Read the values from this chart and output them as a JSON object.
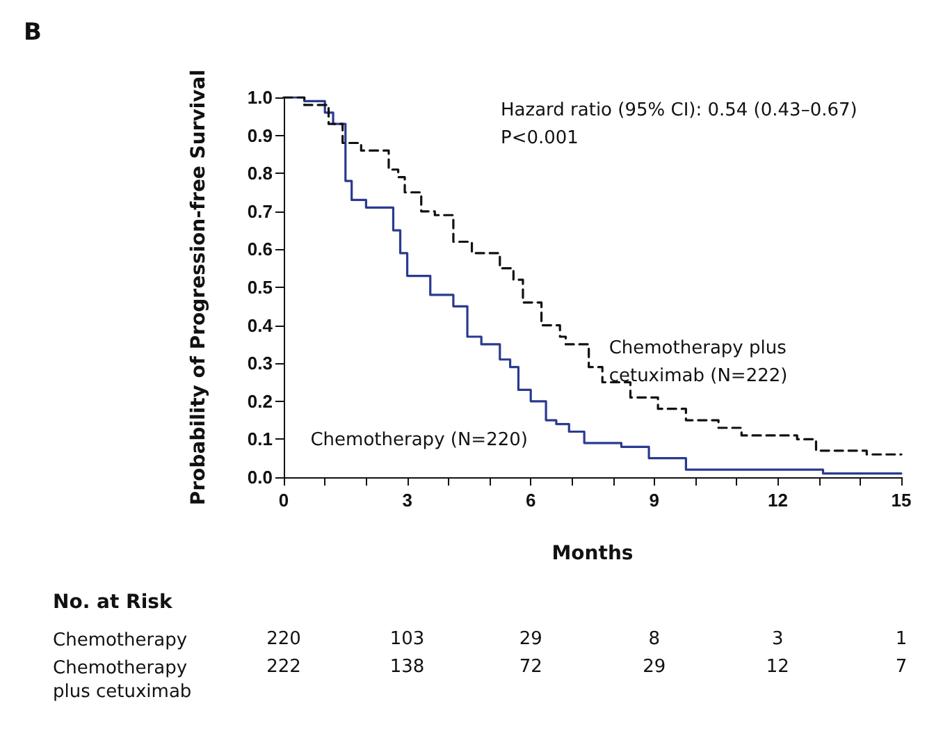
{
  "chart_data": {
    "type": "step",
    "title": "B",
    "xlabel": "Months",
    "ylabel": "Probability of Progression-free Survival",
    "xlim": [
      0,
      15
    ],
    "xticks": [
      0,
      {
        "value": 1,
        "label": null
      },
      {
        "value": 2,
        "label": null
      },
      3,
      {
        "value": 4,
        "label": null
      },
      {
        "value": 5,
        "label": null
      },
      6,
      {
        "value": 7,
        "label": null
      },
      {
        "value": 8,
        "label": null
      },
      9,
      {
        "value": 10,
        "label": null
      },
      {
        "value": 11,
        "label": null
      },
      12,
      {
        "value": 13,
        "label": null
      },
      {
        "value": 14,
        "label": null
      },
      15
    ],
    "ylim": [
      0,
      1
    ],
    "yticks": [
      {
        "value": 0,
        "label": "0.0"
      },
      0.1,
      0.2,
      0.3,
      0.4,
      0.5,
      0.6,
      0.7,
      0.8,
      0.9,
      {
        "value": 1,
        "label": "1.0"
      }
    ],
    "grid": false,
    "legend": false,
    "marker": "none",
    "series": [
      {
        "name": "Chemotherapy (N=220)",
        "color": "#2b3a8f",
        "line_style": "solid",
        "x": [
          0,
          0.5,
          1.0,
          1.2,
          1.5,
          1.65,
          2.0,
          2.66,
          2.83,
          3.0,
          3.56,
          4.12,
          4.46,
          4.8,
          5.25,
          5.5,
          5.7,
          6.0,
          6.37,
          6.62,
          6.93,
          7.3,
          8.2,
          8.87,
          9.77,
          13.1,
          15
        ],
        "values": [
          1.0,
          0.99,
          0.96,
          0.93,
          0.78,
          0.73,
          0.71,
          0.65,
          0.59,
          0.53,
          0.48,
          0.45,
          0.37,
          0.35,
          0.31,
          0.29,
          0.23,
          0.2,
          0.15,
          0.14,
          0.12,
          0.09,
          0.08,
          0.05,
          0.02,
          0.01,
          0.01
        ]
      },
      {
        "name": "Chemotherapy plus cetuximab (N=222)",
        "color": "#111111",
        "line_style": "dashed",
        "x": [
          0,
          0.5,
          1.09,
          1.43,
          1.88,
          2.55,
          2.78,
          2.94,
          3.34,
          3.67,
          4.12,
          4.57,
          5.25,
          5.58,
          5.81,
          6.26,
          6.71,
          6.85,
          7.41,
          7.74,
          8.42,
          9.09,
          9.77,
          10.56,
          11.12,
          12.47,
          12.93,
          14.16,
          15
        ],
        "values": [
          1.0,
          0.98,
          0.93,
          0.88,
          0.86,
          0.81,
          0.79,
          0.75,
          0.7,
          0.69,
          0.62,
          0.59,
          0.55,
          0.52,
          0.46,
          0.4,
          0.37,
          0.35,
          0.29,
          0.25,
          0.21,
          0.18,
          0.15,
          0.13,
          0.11,
          0.1,
          0.07,
          0.06,
          0.06
        ]
      }
    ],
    "annotations": [
      "Hazard ratio (95% CI): 0.54 (0.43–0.67)",
      "P<0.001",
      "No. at Risk",
      "Chemotherapy",
      "220",
      "103",
      "29",
      "8",
      "3",
      "1",
      "Chemotherapy plus cetuximab",
      "222",
      "138",
      "72",
      "29",
      "12",
      "7"
    ]
  }
}
